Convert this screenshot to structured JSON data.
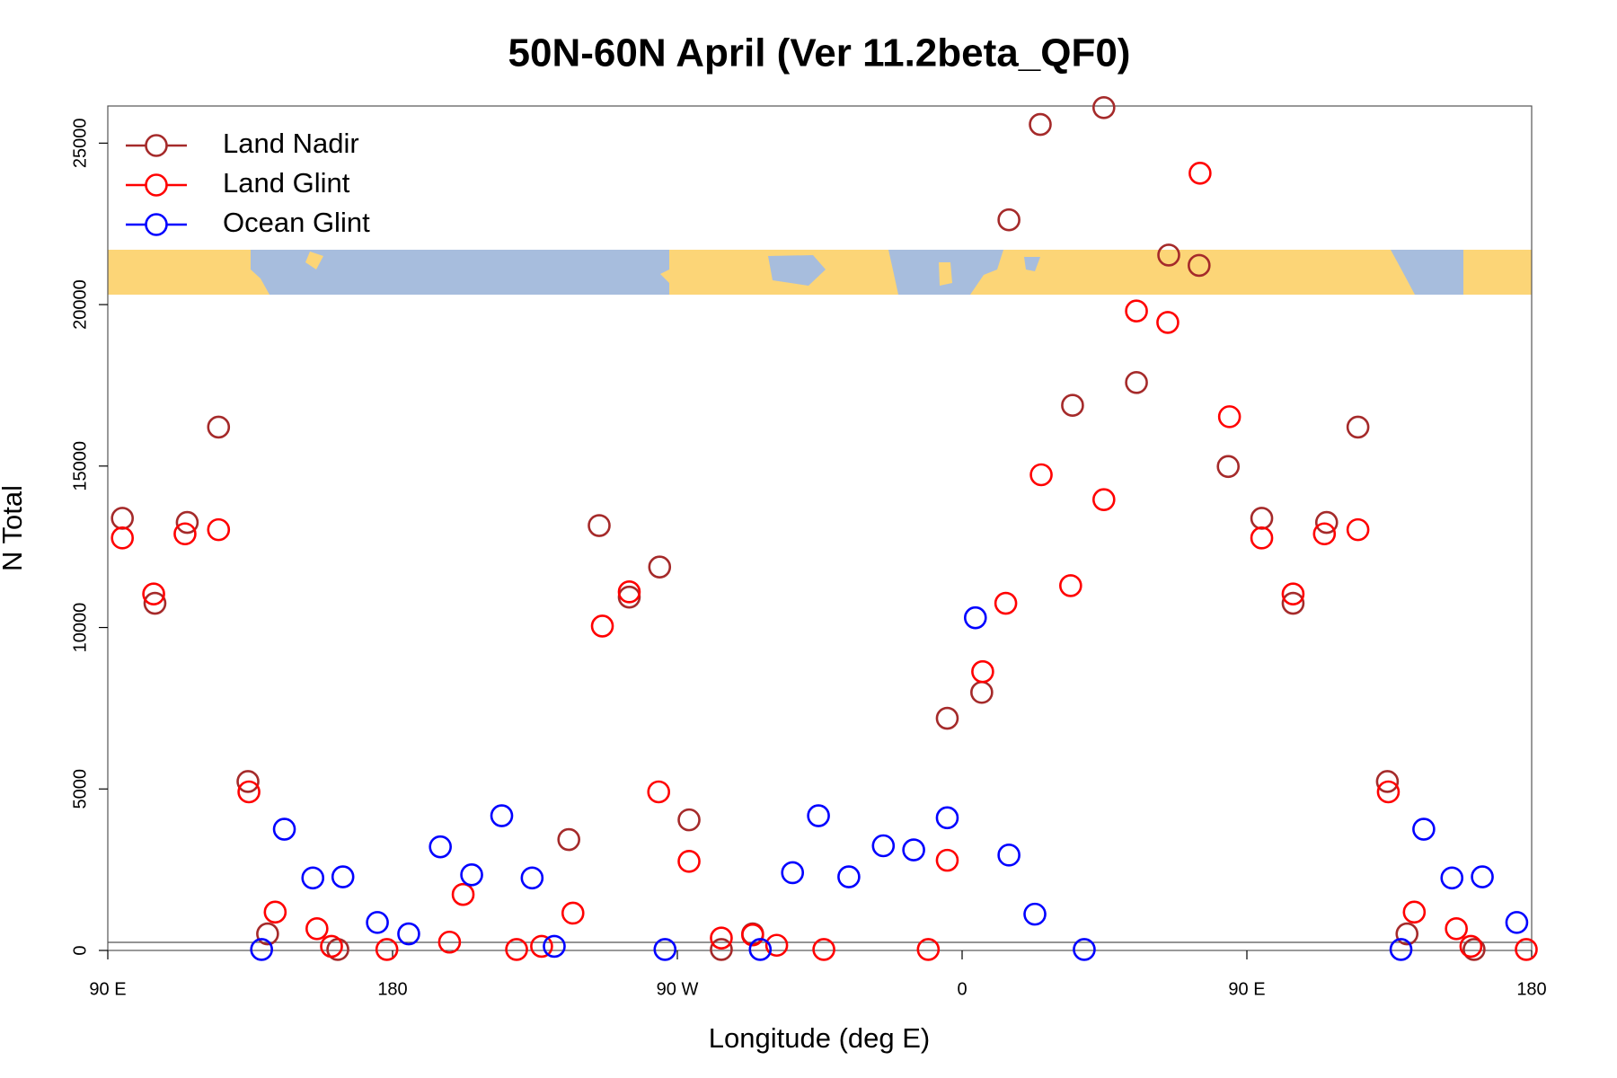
{
  "chart_data": {
    "type": "scatter",
    "title": "50N-60N April (Ver 11.2beta_QF0)",
    "x_label": "Longitude (deg E)",
    "y_label": "N Total",
    "xlim": [
      90,
      540
    ],
    "ylim": [
      0,
      26150
    ],
    "xticks": [
      {
        "value": 90,
        "label": "90 E"
      },
      {
        "value": 180,
        "label": "180"
      },
      {
        "value": 270,
        "label": "90 W"
      },
      {
        "value": 360,
        "label": "0"
      },
      {
        "value": 450,
        "label": "90 E"
      },
      {
        "value": 540,
        "label": "180"
      }
    ],
    "yticks": [
      0,
      5000,
      10000,
      15000,
      20000,
      25000
    ],
    "hline": 250,
    "legend": "topleft",
    "series": [
      {
        "name": "Land Nadir",
        "color": "#a52a2a",
        "x": [
          94.6,
          104.9,
          115.1,
          125.0,
          134.3,
          140.5,
          162.7,
          235.7,
          245.3,
          254.8,
          264.4,
          273.7,
          283.9,
          293.8,
          355.3,
          366.2,
          374.8,
          384.7,
          394.9,
          404.8,
          415.1,
          425.3,
          434.9,
          444.1,
          454.7,
          464.6,
          475.2,
          485.1,
          494.4,
          500.6,
          521.8
        ],
        "values": [
          13383,
          10751,
          13254,
          16207,
          5231,
          513,
          30,
          3434,
          13158,
          10943,
          11874,
          4044,
          30,
          513,
          7189,
          7991,
          22625,
          25578,
          16881,
          26100,
          17587,
          21534,
          21213,
          14987,
          13383,
          10751,
          13254,
          16207,
          5231,
          513,
          30
        ]
      },
      {
        "name": "Land Glint",
        "color": "#ff0000",
        "x": [
          94.6,
          104.5,
          114.4,
          125.0,
          134.6,
          142.9,
          156.1,
          160.7,
          178.2,
          198.0,
          202.3,
          219.2,
          227.1,
          237.0,
          246.3,
          254.8,
          264.1,
          273.7,
          283.9,
          293.8,
          301.4,
          316.3,
          349.3,
          355.3,
          366.5,
          373.8,
          385.0,
          394.3,
          404.8,
          415.1,
          425.0,
          435.2,
          444.5,
          454.7,
          464.6,
          474.5,
          485.1,
          494.7,
          502.9,
          516.2,
          520.8,
          538.3
        ],
        "values": [
          12773,
          11040,
          12901,
          13030,
          4910,
          1187,
          674,
          128,
          30,
          257,
          1733,
          30,
          128,
          1155,
          10045,
          11104,
          4910,
          2760,
          385,
          481,
          160,
          30,
          30,
          2792,
          8633,
          10751,
          14730,
          11297,
          13960,
          19801,
          19448,
          24069,
          16528,
          12773,
          11040,
          12901,
          13030,
          4910,
          1187,
          674,
          128,
          30
        ]
      },
      {
        "name": "Ocean Glint",
        "color": "#0000ff",
        "x": [
          138.6,
          145.8,
          154.8,
          164.3,
          175.2,
          185.1,
          195.1,
          205.0,
          214.5,
          224.1,
          231.1,
          266.1,
          296.2,
          306.4,
          314.6,
          324.2,
          335.1,
          344.7,
          355.3,
          364.2,
          374.8,
          383.0,
          398.6,
          498.7,
          505.9,
          514.8,
          524.4,
          535.3
        ],
        "values": [
          30,
          3755,
          2246,
          2279,
          866,
          513,
          3209,
          2343,
          4172,
          2246,
          128,
          30,
          30,
          2407,
          4172,
          2279,
          3241,
          3113,
          4108,
          10302,
          2953,
          1123,
          30,
          30,
          3755,
          2246,
          2279,
          866
        ]
      }
    ]
  }
}
